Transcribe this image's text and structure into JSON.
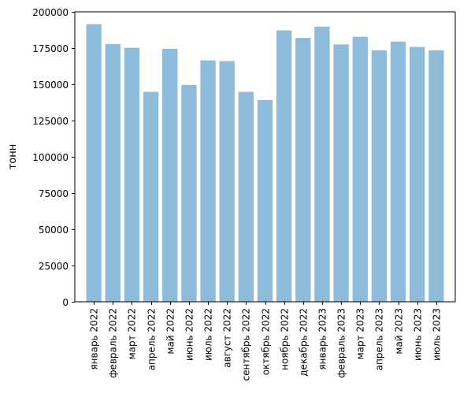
{
  "chart_data": {
    "type": "bar",
    "title": "",
    "xlabel": "",
    "ylabel": "тонн",
    "ylim": [
      0,
      200000
    ],
    "yticks": [
      0,
      25000,
      50000,
      75000,
      100000,
      125000,
      150000,
      175000,
      200000
    ],
    "grid": false,
    "legend": "none",
    "bar_color": "#8fbbdb",
    "categories": [
      "январь 2022",
      "февраль 2022",
      "март 2022",
      "апрель 2022",
      "май 2022",
      "июнь 2022",
      "июль 2022",
      "август 2022",
      "сентябрь 2022",
      "октябрь 2022",
      "ноябрь 2022",
      "декабрь 2022",
      "январь 2023",
      "февраль 2023",
      "март 2023",
      "апрель 2023",
      "май 2023",
      "июнь 2023",
      "июль 2023"
    ],
    "values": [
      191500,
      177800,
      175200,
      144800,
      174500,
      149500,
      166500,
      166000,
      144800,
      139200,
      187200,
      182000,
      189800,
      177500,
      182800,
      173500,
      179500,
      175800,
      173500
    ]
  }
}
